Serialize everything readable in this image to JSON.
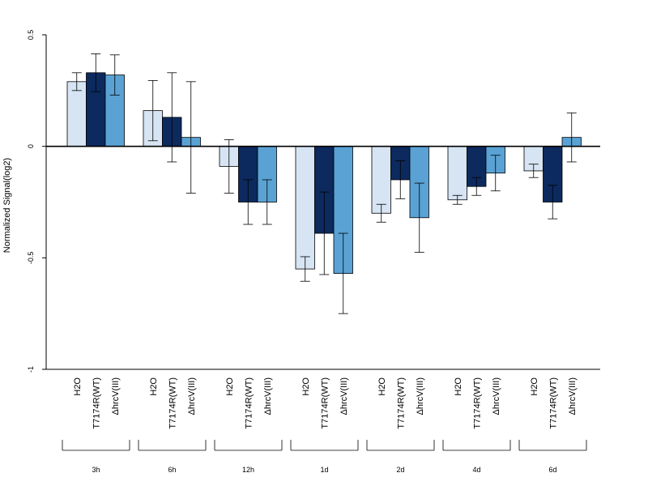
{
  "chart_data": {
    "type": "bar",
    "title": "",
    "xlabel": "",
    "ylabel": "Normalized Signal(log2)",
    "ylim": [
      -1,
      0.5
    ],
    "y_ticks": [
      0.5,
      0,
      -0.5,
      -1
    ],
    "y_tick_labels": [
      "0.5",
      "0",
      "-0.5",
      "-1"
    ],
    "groups": [
      "3h",
      "6h",
      "12h",
      "1d",
      "2d",
      "4d",
      "6d"
    ],
    "series": [
      {
        "name": "H2O",
        "color": "#d6e4f3",
        "values": [
          0.29,
          0.16,
          -0.09,
          -0.55,
          -0.3,
          -0.24,
          -0.11
        ],
        "errors": [
          0.04,
          0.135,
          0.12,
          0.055,
          0.04,
          0.02,
          0.03
        ]
      },
      {
        "name": "T7174R(WT)",
        "color": "#0c2a5e",
        "values": [
          0.33,
          0.13,
          -0.25,
          -0.39,
          -0.15,
          -0.18,
          -0.25
        ],
        "errors": [
          0.085,
          0.2,
          0.1,
          0.185,
          0.085,
          0.04,
          0.075
        ]
      },
      {
        "name": "ΔhrcV(III)",
        "color": "#5aa2d4",
        "values": [
          0.32,
          0.04,
          -0.25,
          -0.57,
          -0.32,
          -0.12,
          0.04
        ],
        "errors": [
          0.09,
          0.25,
          0.1,
          0.18,
          0.155,
          0.08,
          0.11
        ]
      }
    ],
    "grid": false,
    "legend": "none"
  }
}
